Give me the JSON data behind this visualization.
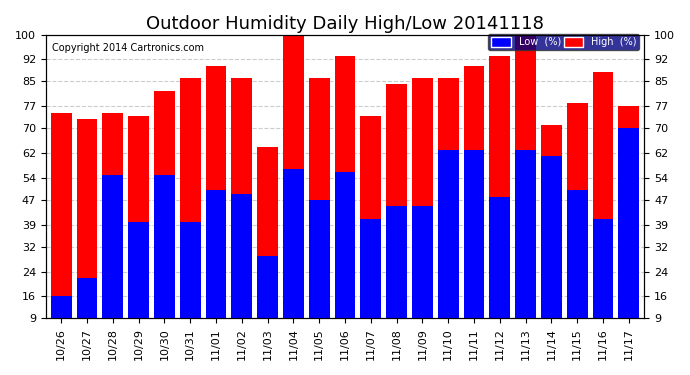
{
  "title": "Outdoor Humidity Daily High/Low 20141118",
  "copyright": "Copyright 2014 Cartronics.com",
  "categories": [
    "10/26",
    "10/27",
    "10/28",
    "10/29",
    "10/30",
    "10/31",
    "11/01",
    "11/02",
    "11/03",
    "11/04",
    "11/05",
    "11/06",
    "11/07",
    "11/08",
    "11/09",
    "11/10",
    "11/11",
    "11/12",
    "11/13",
    "11/14",
    "11/15",
    "11/16",
    "11/17"
  ],
  "high": [
    75,
    73,
    75,
    74,
    82,
    86,
    90,
    86,
    64,
    100,
    86,
    93,
    74,
    84,
    86,
    86,
    90,
    93,
    100,
    71,
    78,
    88,
    77
  ],
  "low": [
    16,
    22,
    55,
    40,
    55,
    40,
    50,
    49,
    29,
    57,
    47,
    56,
    41,
    45,
    45,
    63,
    63,
    48,
    63,
    61,
    50,
    41,
    70
  ],
  "high_color": "#ff0000",
  "low_color": "#0000ff",
  "bg_color": "#ffffff",
  "grid_color": "#cccccc",
  "ylim_min": 9,
  "ylim_max": 100,
  "yticks": [
    9,
    16,
    24,
    32,
    39,
    47,
    54,
    62,
    70,
    77,
    85,
    92,
    100
  ],
  "legend_low_label": "Low  (%)",
  "legend_high_label": "High  (%)",
  "title_fontsize": 13,
  "tick_fontsize": 8
}
